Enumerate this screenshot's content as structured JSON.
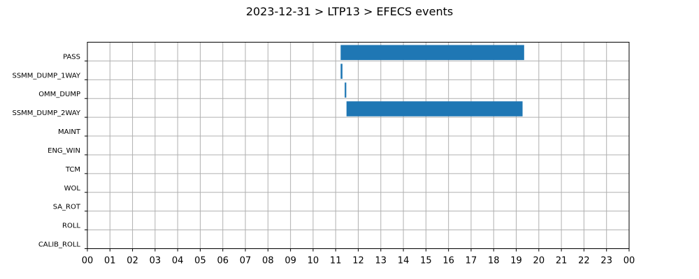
{
  "chart_data": {
    "type": "bar",
    "orientation": "horizontal",
    "title": "2023-12-31 > LTP13 > EFECS events",
    "xlabel": "",
    "ylabel": "",
    "xlim": [
      0,
      24
    ],
    "x_tick_labels": [
      "00",
      "01",
      "02",
      "03",
      "04",
      "05",
      "06",
      "07",
      "08",
      "09",
      "10",
      "11",
      "12",
      "13",
      "14",
      "15",
      "16",
      "17",
      "18",
      "19",
      "20",
      "21",
      "22",
      "23",
      "00"
    ],
    "categories": [
      "PASS",
      "SSMM_DUMP_1WAY",
      "OMM_DUMP",
      "SSMM_DUMP_2WAY",
      "MAINT",
      "ENG_WIN",
      "TCM",
      "WOL",
      "SA_ROT",
      "ROLL",
      "CALIB_ROLL"
    ],
    "grid": true,
    "bar_color": "#1f77b4",
    "events": [
      {
        "category": "PASS",
        "start": 11.22,
        "end": 19.35
      },
      {
        "category": "SSMM_DUMP_1WAY",
        "start": 11.22,
        "end": 11.3
      },
      {
        "category": "OMM_DUMP",
        "start": 11.4,
        "end": 11.47
      },
      {
        "category": "SSMM_DUMP_2WAY",
        "start": 11.48,
        "end": 19.28
      }
    ]
  }
}
